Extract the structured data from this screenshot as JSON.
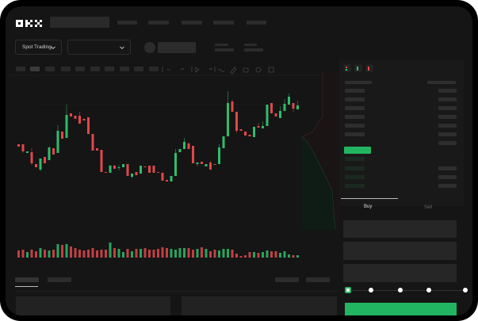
{
  "brand": {
    "logo": "OKX"
  },
  "header": {
    "market_dropdown": "Spot Trading"
  },
  "toolbar": {
    "icons": [
      "indicator-icon",
      "chevron-down-icon",
      "draw-icon",
      "chevron-down-icon",
      "line-icon",
      "ruler-icon",
      "camera-icon",
      "settings-icon",
      "fullscreen-icon"
    ]
  },
  "orderbook": {
    "view_icons": [
      "orderbook-both-icon",
      "orderbook-bids-icon",
      "orderbook-asks-icon"
    ]
  },
  "trade": {
    "tabs": [
      {
        "label": "Buy",
        "active": true
      },
      {
        "label": "Sell",
        "active": false
      }
    ],
    "slider_percent": 0,
    "slider_stops": 5
  },
  "colors": {
    "up": "#2ebd6b",
    "down": "#e0484a",
    "accent": "#22b561"
  },
  "chart_data": {
    "type": "candlestick",
    "ohlc": [
      [
        68,
        68,
        65,
        65
      ],
      [
        68,
        68,
        57,
        59
      ],
      [
        57,
        59,
        57,
        59
      ],
      [
        58,
        63,
        42,
        44
      ],
      [
        43,
        43,
        39,
        39
      ],
      [
        36,
        50,
        34,
        50
      ],
      [
        52,
        52,
        44,
        44
      ],
      [
        48,
        65,
        48,
        64
      ],
      [
        63,
        63,
        55,
        55
      ],
      [
        57,
        92,
        57,
        85
      ],
      [
        84,
        84,
        75,
        75
      ],
      [
        76,
        118,
        76,
        105
      ],
      [
        107,
        107,
        103,
        103
      ],
      [
        104,
        104,
        100,
        100
      ],
      [
        104,
        109,
        94,
        94
      ],
      [
        100,
        100,
        98,
        98
      ],
      [
        102,
        102,
        81,
        81
      ],
      [
        81,
        81,
        60,
        60
      ],
      [
        63,
        63,
        60,
        60
      ],
      [
        61,
        61,
        33,
        33
      ],
      [
        33,
        33,
        32,
        32
      ],
      [
        32,
        42,
        32,
        41
      ],
      [
        41,
        42,
        37,
        37
      ],
      [
        38,
        42,
        35,
        39
      ],
      [
        39,
        43,
        39,
        43
      ],
      [
        43,
        43,
        28,
        28
      ],
      [
        27,
        31,
        25,
        31
      ],
      [
        33,
        33,
        29,
        29
      ],
      [
        31,
        41,
        31,
        41
      ],
      [
        40,
        40,
        39,
        39
      ],
      [
        41,
        41,
        32,
        32
      ],
      [
        41,
        41,
        32,
        32
      ],
      [
        33,
        33,
        32,
        32
      ],
      [
        32,
        32,
        22,
        22
      ],
      [
        23,
        23,
        21,
        21
      ],
      [
        21,
        28,
        21,
        28
      ],
      [
        28,
        62,
        28,
        57
      ],
      [
        58,
        62,
        58,
        62
      ],
      [
        62,
        76,
        62,
        71
      ],
      [
        69,
        70,
        62,
        62
      ],
      [
        66,
        66,
        44,
        44
      ],
      [
        43,
        45,
        40,
        45
      ],
      [
        46,
        46,
        43,
        43
      ],
      [
        40,
        43,
        40,
        43
      ],
      [
        45,
        47,
        36,
        36
      ],
      [
        43,
        43,
        42,
        42
      ],
      [
        43,
        68,
        43,
        64
      ],
      [
        63,
        78,
        63,
        78
      ],
      [
        78,
        135,
        78,
        120
      ],
      [
        122,
        124,
        109,
        109
      ],
      [
        109,
        109,
        82,
        85
      ],
      [
        87,
        87,
        85,
        85
      ],
      [
        84,
        84,
        79,
        79
      ],
      [
        80,
        80,
        78,
        78
      ],
      [
        77,
        90,
        77,
        90
      ],
      [
        91,
        95,
        89,
        89
      ],
      [
        88,
        97,
        88,
        91
      ],
      [
        91,
        118,
        91,
        118
      ],
      [
        120,
        120,
        107,
        107
      ],
      [
        107,
        107,
        103,
        103
      ],
      [
        101,
        116,
        101,
        110
      ],
      [
        110,
        125,
        110,
        119
      ],
      [
        118,
        132,
        118,
        128
      ],
      [
        120,
        120,
        109,
        113
      ],
      [
        112,
        123,
        112,
        117
      ]
    ],
    "volume": [
      9,
      10,
      7,
      10,
      8,
      12,
      10,
      9,
      10,
      17,
      16,
      17,
      14,
      12,
      10,
      9,
      10,
      12,
      9,
      10,
      10,
      19,
      12,
      11,
      7,
      11,
      8,
      11,
      11,
      12,
      10,
      10,
      11,
      13,
      12,
      11,
      10,
      12,
      12,
      12,
      10,
      11,
      13,
      11,
      8,
      10,
      9,
      11,
      11,
      10,
      5,
      2,
      3,
      7,
      7,
      6,
      7,
      9,
      8,
      8,
      6,
      8,
      4,
      3,
      3
    ]
  }
}
